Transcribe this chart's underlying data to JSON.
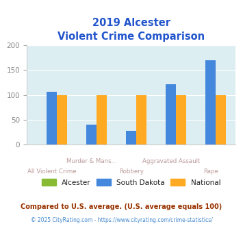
{
  "title_line1": "2019 Alcester",
  "title_line2": "Violent Crime Comparison",
  "categories": [
    "All Violent Crime",
    "Murder & Mans...",
    "Robbery",
    "Aggravated Assault",
    "Rape"
  ],
  "alcester": [
    0,
    0,
    0,
    0,
    0
  ],
  "south_dakota": [
    106,
    40,
    28,
    121,
    170
  ],
  "national": [
    100,
    100,
    100,
    100,
    100
  ],
  "alcester_color": "#88bb33",
  "sd_color": "#4488dd",
  "national_color": "#ffaa22",
  "bg_color": "#ddeef2",
  "ylim": [
    0,
    200
  ],
  "yticks": [
    0,
    50,
    100,
    150,
    200
  ],
  "footnote1": "Compared to U.S. average. (U.S. average equals 100)",
  "footnote2": "© 2025 CityRating.com - https://www.cityrating.com/crime-statistics/",
  "title_color": "#2255cc",
  "footnote1_color": "#993300",
  "footnote2_color": "#4488cc",
  "xlabel_color": "#bb9999",
  "legend_text_color": "#222222"
}
